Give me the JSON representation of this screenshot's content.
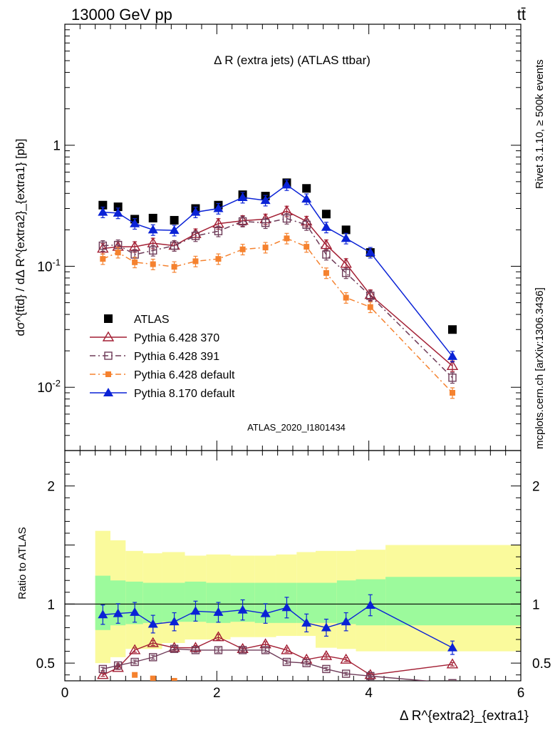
{
  "header": {
    "left": "13000 GeV pp",
    "right": "tt̄"
  },
  "side_labels": {
    "rivet": "Rivet 3.1.10, ≥ 500k events",
    "mcplots": "mcplots.cern.ch [arXiv:1306.3436]"
  },
  "chart_data": [
    {
      "type": "scatter",
      "title": "Δ R (extra jets) (ATLAS ttbar)",
      "watermark": "ATLAS_2020_I1801434",
      "ylabel": "dσ^{tt̄d} / dΔ R^{extra2}_{extra1} [pb]",
      "xlabel": "Δ R^{extra2}_{extra1}",
      "yscale": "log",
      "xlim": [
        0,
        6
      ],
      "ylim": [
        0.003,
        10
      ],
      "y_ticks": [
        {
          "value": 0.01,
          "label": "10^{-2}"
        },
        {
          "value": 0.1,
          "label": "10^{-1}"
        },
        {
          "value": 1,
          "label": "1"
        }
      ],
      "legend_position": "lower-left",
      "series": [
        {
          "name": "ATLAS",
          "color": "#000000",
          "marker": "filled-square",
          "line": "none",
          "x": [
            0.5,
            0.7,
            0.92,
            1.16,
            1.44,
            1.72,
            2.02,
            2.34,
            2.64,
            2.92,
            3.18,
            3.44,
            3.7,
            4.02,
            5.1
          ],
          "y": [
            0.32,
            0.31,
            0.245,
            0.25,
            0.24,
            0.3,
            0.32,
            0.39,
            0.38,
            0.49,
            0.44,
            0.27,
            0.2,
            0.13,
            0.03
          ]
        },
        {
          "name": "Pythia 6.428 370",
          "color": "#a31f34",
          "marker": "open-triangle",
          "line": "solid",
          "x": [
            0.5,
            0.7,
            0.92,
            1.16,
            1.44,
            1.72,
            2.02,
            2.34,
            2.64,
            2.92,
            3.18,
            3.44,
            3.7,
            4.02,
            5.1
          ],
          "y": [
            0.14,
            0.145,
            0.145,
            0.155,
            0.148,
            0.185,
            0.225,
            0.238,
            0.245,
            0.285,
            0.235,
            0.15,
            0.105,
            0.058,
            0.015
          ]
        },
        {
          "name": "Pythia 6.428 391",
          "color": "#6e3b58",
          "marker": "open-square",
          "line": "dash-dot",
          "x": [
            0.5,
            0.7,
            0.92,
            1.16,
            1.44,
            1.72,
            2.02,
            2.34,
            2.64,
            2.92,
            3.18,
            3.44,
            3.7,
            4.02,
            5.1
          ],
          "y": [
            0.148,
            0.15,
            0.125,
            0.135,
            0.148,
            0.178,
            0.195,
            0.235,
            0.228,
            0.248,
            0.22,
            0.125,
            0.088,
            0.057,
            0.012
          ]
        },
        {
          "name": "Pythia 6.428 default",
          "color": "#f5822f",
          "marker": "filled-square-small",
          "line": "dash-dot",
          "x": [
            0.5,
            0.7,
            0.92,
            1.16,
            1.44,
            1.72,
            2.02,
            2.34,
            2.64,
            2.92,
            3.18,
            3.44,
            3.7,
            4.02,
            5.1
          ],
          "y": [
            0.115,
            0.13,
            0.108,
            0.104,
            0.099,
            0.11,
            0.115,
            0.138,
            0.143,
            0.17,
            0.145,
            0.088,
            0.055,
            0.046,
            0.009
          ]
        },
        {
          "name": "Pythia 8.170 default",
          "color": "#0a22d6",
          "marker": "filled-triangle",
          "line": "solid",
          "x": [
            0.5,
            0.7,
            0.92,
            1.16,
            1.44,
            1.72,
            2.02,
            2.34,
            2.64,
            2.92,
            3.18,
            3.44,
            3.7,
            4.02,
            5.1
          ],
          "y": [
            0.28,
            0.275,
            0.225,
            0.2,
            0.198,
            0.28,
            0.3,
            0.37,
            0.35,
            0.47,
            0.36,
            0.21,
            0.17,
            0.13,
            0.018
          ]
        }
      ]
    },
    {
      "type": "scatter",
      "ylabel": "Ratio to ATLAS",
      "xlabel": "Δ R^{extra2}_{extra1}",
      "xlim": [
        0,
        6
      ],
      "ylim": [
        0.35,
        2.3
      ],
      "y_ticks": [
        0.5,
        1,
        2
      ],
      "x_ticks": [
        0,
        2,
        4,
        6
      ],
      "reference_line": 1,
      "bands": {
        "bin_edges": [
          0.4,
          0.6,
          0.8,
          1.03,
          1.28,
          1.58,
          1.86,
          2.18,
          2.5,
          2.78,
          3.05,
          3.3,
          3.58,
          3.83,
          4.22,
          6.0
        ],
        "green": {
          "color": "#9cfa9c",
          "low": [
            0.78,
            0.82,
            0.83,
            0.84,
            0.85,
            0.85,
            0.84,
            0.85,
            0.84,
            0.84,
            0.84,
            0.84,
            0.83,
            0.82,
            0.82
          ],
          "high": [
            1.24,
            1.2,
            1.19,
            1.18,
            1.18,
            1.19,
            1.18,
            1.18,
            1.18,
            1.18,
            1.18,
            1.18,
            1.2,
            1.21,
            1.23
          ]
        },
        "yellow": {
          "color": "#fafa9c",
          "low": [
            0.5,
            0.55,
            0.62,
            0.62,
            0.67,
            0.7,
            0.7,
            0.72,
            0.72,
            0.73,
            0.73,
            0.63,
            0.62,
            0.6,
            0.6
          ],
          "high": [
            1.62,
            1.54,
            1.45,
            1.43,
            1.44,
            1.41,
            1.42,
            1.41,
            1.41,
            1.42,
            1.44,
            1.45,
            1.45,
            1.46,
            1.5
          ]
        }
      },
      "series": [
        {
          "name": "Pythia 6.428 370",
          "color": "#a31f34",
          "marker": "open-triangle",
          "x": [
            0.5,
            0.7,
            0.92,
            1.16,
            1.44,
            1.72,
            2.02,
            2.34,
            2.64,
            2.92,
            3.18,
            3.44,
            3.7,
            4.02,
            5.1
          ],
          "y": [
            0.4,
            0.46,
            0.61,
            0.67,
            0.63,
            0.63,
            0.72,
            0.62,
            0.66,
            0.61,
            0.53,
            0.56,
            0.53,
            0.4,
            0.49
          ]
        },
        {
          "name": "Pythia 6.428 391",
          "color": "#6e3b58",
          "marker": "open-square",
          "x": [
            0.5,
            0.7,
            0.92,
            1.16,
            1.44,
            1.72,
            2.02,
            2.34,
            2.64,
            2.92,
            3.18,
            3.44,
            3.7,
            4.02,
            5.1
          ],
          "y": [
            0.45,
            0.48,
            0.51,
            0.55,
            0.62,
            0.61,
            0.61,
            0.61,
            0.61,
            0.51,
            0.5,
            0.45,
            0.41,
            0.39,
            0.33
          ]
        },
        {
          "name": "Pythia 6.428 default",
          "color": "#f5822f",
          "marker": "filled-square-small",
          "x": [
            0.92,
            1.16,
            1.44
          ],
          "y": [
            0.4,
            0.37,
            0.35
          ]
        },
        {
          "name": "Pythia 8.170 default",
          "color": "#0a22d6",
          "marker": "filled-triangle",
          "x": [
            0.5,
            0.7,
            0.92,
            1.16,
            1.44,
            1.72,
            2.02,
            2.34,
            2.64,
            2.92,
            3.18,
            3.44,
            3.7,
            4.02,
            5.1
          ],
          "y": [
            0.91,
            0.92,
            0.93,
            0.83,
            0.85,
            0.94,
            0.93,
            0.95,
            0.92,
            0.97,
            0.84,
            0.8,
            0.85,
            0.99,
            0.63
          ]
        }
      ]
    }
  ]
}
